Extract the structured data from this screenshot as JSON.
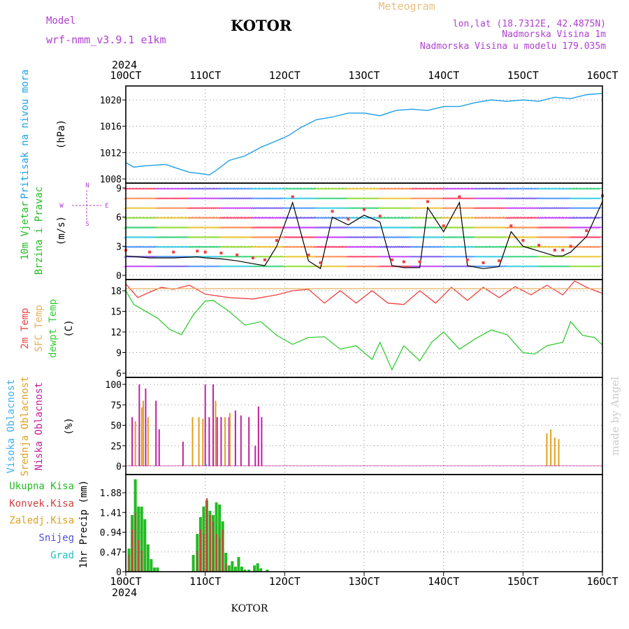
{
  "header": {
    "model_label": "Model",
    "model_name": "wrf-nmm_v3.9.1 e1km",
    "meteogram_label": "Meteogram",
    "station": "KOTOR",
    "lonlat": "lon,lat (18.7312E, 42.4875N)",
    "altitude": "Nadmorska Visina 1m",
    "model_altitude": "Nadmorska Visina u modelu 179.035m",
    "footer_station": "KOTOR",
    "credit": "made by Angel"
  },
  "colors": {
    "pressure": "#1ea0e6",
    "temp": "#f04040",
    "sfc": "#e8b060",
    "dewpt": "#33cc33",
    "high_cloud": "#40b0f0",
    "mid_cloud": "#e0a020",
    "low_cloud": "#c020a0",
    "total_precip": "#22bb22",
    "conv_precip": "#d04040",
    "snow": "#5050e0",
    "hail": "#20c0c0",
    "wind_label": "#22bb22",
    "meteogram": "#e8c080",
    "info": "#b040d0"
  },
  "chart_data": {
    "type": "line",
    "x_axis": {
      "year": "2024",
      "date_labels": [
        "10OCT",
        "11OCT",
        "12OCT",
        "13OCT",
        "14OCT",
        "15OCT",
        "16OCT"
      ],
      "xlim": [
        10,
        16
      ]
    },
    "panels": [
      {
        "id": "pressure",
        "ylabel": [
          "Pritisak na nivou mora",
          "(hPa)"
        ],
        "ylim": [
          1008,
          1021.4
        ],
        "yticks": [
          1008,
          1012,
          1016,
          1020
        ],
        "series": [
          {
            "name": "Pritisak na nivou mora",
            "x": [
              10.0,
              10.1,
              10.25,
              10.5,
              10.6,
              10.8,
              10.95,
              11.05,
              11.15,
              11.3,
              11.5,
              11.7,
              11.9,
              12.05,
              12.2,
              12.4,
              12.6,
              12.8,
              13.0,
              13.2,
              13.4,
              13.6,
              13.8,
              14.0,
              14.2,
              14.4,
              14.6,
              14.8,
              15.0,
              15.2,
              15.4,
              15.6,
              15.8,
              16.0
            ],
            "values": [
              1010.5,
              1009.8,
              1010.0,
              1010.2,
              1009.8,
              1009.0,
              1008.8,
              1008.6,
              1009.4,
              1010.8,
              1011.5,
              1012.8,
              1013.8,
              1014.6,
              1015.8,
              1017.0,
              1017.4,
              1018.0,
              1018.0,
              1017.6,
              1018.4,
              1018.6,
              1018.4,
              1019.0,
              1019.0,
              1019.6,
              1020.0,
              1019.8,
              1020.0,
              1019.8,
              1020.4,
              1020.2,
              1020.8,
              1021.0
            ]
          }
        ]
      },
      {
        "id": "wind",
        "ylabel": [
          "10m Vjetar",
          "Brzina i Pravac",
          "(m/s)"
        ],
        "compass": [
          "N",
          "E",
          "S",
          "W"
        ],
        "ylim": [
          0,
          9.3
        ],
        "yticks": [
          0,
          3,
          6,
          9
        ],
        "series": [
          {
            "name": "Brzina",
            "x": [
              10.0,
              10.3,
              10.6,
              10.9,
              11.0,
              11.2,
              11.4,
              11.6,
              11.75,
              11.9,
              12.1,
              12.3,
              12.45,
              12.6,
              12.8,
              13.0,
              13.2,
              13.35,
              13.5,
              13.7,
              13.8,
              14.0,
              14.2,
              14.3,
              14.5,
              14.7,
              14.85,
              15.0,
              15.2,
              15.4,
              15.5,
              15.6,
              15.8,
              16.0
            ],
            "values": [
              2.0,
              1.8,
              1.8,
              1.9,
              1.8,
              1.7,
              1.5,
              1.2,
              1.0,
              3.0,
              7.5,
              1.5,
              0.7,
              6.0,
              5.2,
              6.2,
              5.5,
              1.0,
              0.8,
              0.8,
              7.0,
              4.5,
              7.5,
              1.0,
              0.7,
              0.9,
              4.5,
              3.0,
              2.5,
              2.0,
              2.0,
              2.4,
              4.0,
              7.6
            ]
          }
        ]
      },
      {
        "id": "temperature",
        "ylabel": [
          "2m Temp",
          "SFC Temp",
          "dewpt Temp",
          "(C)"
        ],
        "ylim": [
          5.8,
          19.6
        ],
        "yticks": [
          6,
          9,
          12,
          15,
          18
        ],
        "series": [
          {
            "name": "2m Temp",
            "x": [
              10.0,
              10.15,
              10.3,
              10.45,
              10.6,
              10.8,
              11.0,
              11.3,
              11.6,
              11.9,
              12.1,
              12.3,
              12.5,
              12.7,
              12.9,
              13.1,
              13.3,
              13.5,
              13.7,
              13.9,
              14.1,
              14.3,
              14.5,
              14.7,
              14.9,
              15.1,
              15.3,
              15.5,
              15.65,
              15.8,
              16.0
            ],
            "values": [
              19.0,
              17.0,
              17.8,
              18.5,
              18.2,
              18.8,
              17.5,
              17.0,
              16.8,
              17.4,
              18.0,
              18.2,
              16.2,
              18.0,
              16.2,
              18.0,
              16.2,
              16.0,
              18.0,
              16.2,
              18.5,
              16.6,
              18.5,
              17.0,
              18.6,
              17.4,
              18.8,
              17.4,
              19.4,
              18.5,
              17.6
            ]
          },
          {
            "name": "SFC Temp",
            "x": [
              10.0,
              16.0
            ],
            "values": [
              18.3,
              18.3
            ]
          },
          {
            "name": "dewpt Temp",
            "x": [
              10.0,
              10.1,
              10.25,
              10.4,
              10.55,
              10.7,
              10.85,
              11.0,
              11.1,
              11.3,
              11.5,
              11.7,
              11.9,
              12.1,
              12.3,
              12.5,
              12.7,
              12.9,
              13.1,
              13.2,
              13.35,
              13.5,
              13.7,
              13.85,
              14.0,
              14.2,
              14.4,
              14.6,
              14.8,
              15.0,
              15.15,
              15.3,
              15.5,
              15.6,
              15.75,
              15.9,
              16.0
            ],
            "values": [
              18.0,
              16.0,
              15.0,
              14.0,
              12.4,
              11.6,
              14.5,
              16.5,
              16.6,
              15.0,
              13.0,
              13.5,
              11.5,
              10.2,
              11.2,
              11.3,
              9.5,
              10.0,
              8.0,
              10.5,
              6.5,
              10.0,
              7.8,
              10.5,
              12.0,
              9.5,
              11.0,
              12.3,
              11.6,
              9.0,
              8.8,
              10.0,
              10.5,
              13.5,
              11.5,
              11.2,
              10.1
            ]
          }
        ]
      },
      {
        "id": "clouds",
        "type": "bar",
        "ylabel": [
          "Visoka Oblacnost",
          "Srednja Oblacnost",
          "Niska Oblacnost",
          "(%)"
        ],
        "ylim": [
          0,
          103
        ],
        "yticks": [
          0,
          25,
          50,
          75,
          100
        ],
        "series": [
          {
            "name": "Niska Oblacnost",
            "x": [
              10.08,
              10.17,
              10.25,
              10.38,
              10.42,
              10.72,
              11.0,
              11.05,
              11.1,
              11.15,
              11.2,
              11.3,
              11.38,
              11.45,
              11.55,
              11.63,
              11.67,
              11.71
            ],
            "values": [
              60,
              100,
              95,
              80,
              45,
              30,
              100,
              60,
              100,
              60,
              60,
              60,
              68,
              62,
              60,
              25,
              73,
              60
            ]
          },
          {
            "name": "Srednja Oblacnost",
            "x": [
              10.12,
              10.2,
              10.22,
              10.28,
              10.84,
              10.92,
              10.97,
              11.13,
              11.25,
              11.31,
              15.3,
              15.35,
              15.4,
              15.45
            ],
            "values": [
              55,
              72,
              80,
              60,
              60,
              60,
              58,
              80,
              60,
              65,
              40,
              45,
              35,
              33
            ]
          },
          {
            "name": "Visoka Oblacnost",
            "x": [
              11.01
            ],
            "values": [
              3
            ]
          }
        ]
      },
      {
        "id": "precip",
        "type": "bar",
        "ylabel": [
          "1hr Precip (mm)"
        ],
        "legend": [
          "Ukupna Kisa",
          "Konvek.Kisa",
          "Zaledj.Kisa",
          "Snijeg",
          "Grad"
        ],
        "ylim": [
          0,
          2.3
        ],
        "yticks": [
          0,
          0.47,
          0.94,
          1.41,
          1.88
        ],
        "series": [
          {
            "name": "Ukupna Kisa",
            "x": [
              10.04,
              10.08,
              10.12,
              10.16,
              10.2,
              10.24,
              10.28,
              10.32,
              10.36,
              10.4,
              10.85,
              10.9,
              10.94,
              10.98,
              11.02,
              11.06,
              11.1,
              11.14,
              11.18,
              11.22,
              11.26,
              11.3,
              11.34,
              11.38,
              11.42,
              11.46,
              11.5,
              11.55,
              11.62,
              11.66,
              11.7,
              11.78
            ],
            "values": [
              0.55,
              1.35,
              2.2,
              1.55,
              1.55,
              1.25,
              0.65,
              0.3,
              0.1,
              0.1,
              0.4,
              0.9,
              1.3,
              1.55,
              1.7,
              1.45,
              1.35,
              1.65,
              1.6,
              1.2,
              0.45,
              0.15,
              0.25,
              0.12,
              0.35,
              0.12,
              0.05,
              0.05,
              0.15,
              0.2,
              0.08,
              0.05
            ]
          },
          {
            "name": "Konvek.Kisa",
            "x": [
              10.05,
              10.09,
              10.13,
              10.17,
              10.21,
              10.91,
              10.95,
              10.99,
              11.03,
              11.07,
              11.11,
              11.15,
              11.19,
              11.23,
              11.27
            ],
            "values": [
              0.4,
              1.0,
              1.4,
              0.75,
              0.5,
              0.5,
              1.0,
              0.9,
              1.75,
              1.35,
              1.2,
              0.9,
              0.8,
              1.0,
              0.2
            ]
          }
        ]
      }
    ]
  }
}
